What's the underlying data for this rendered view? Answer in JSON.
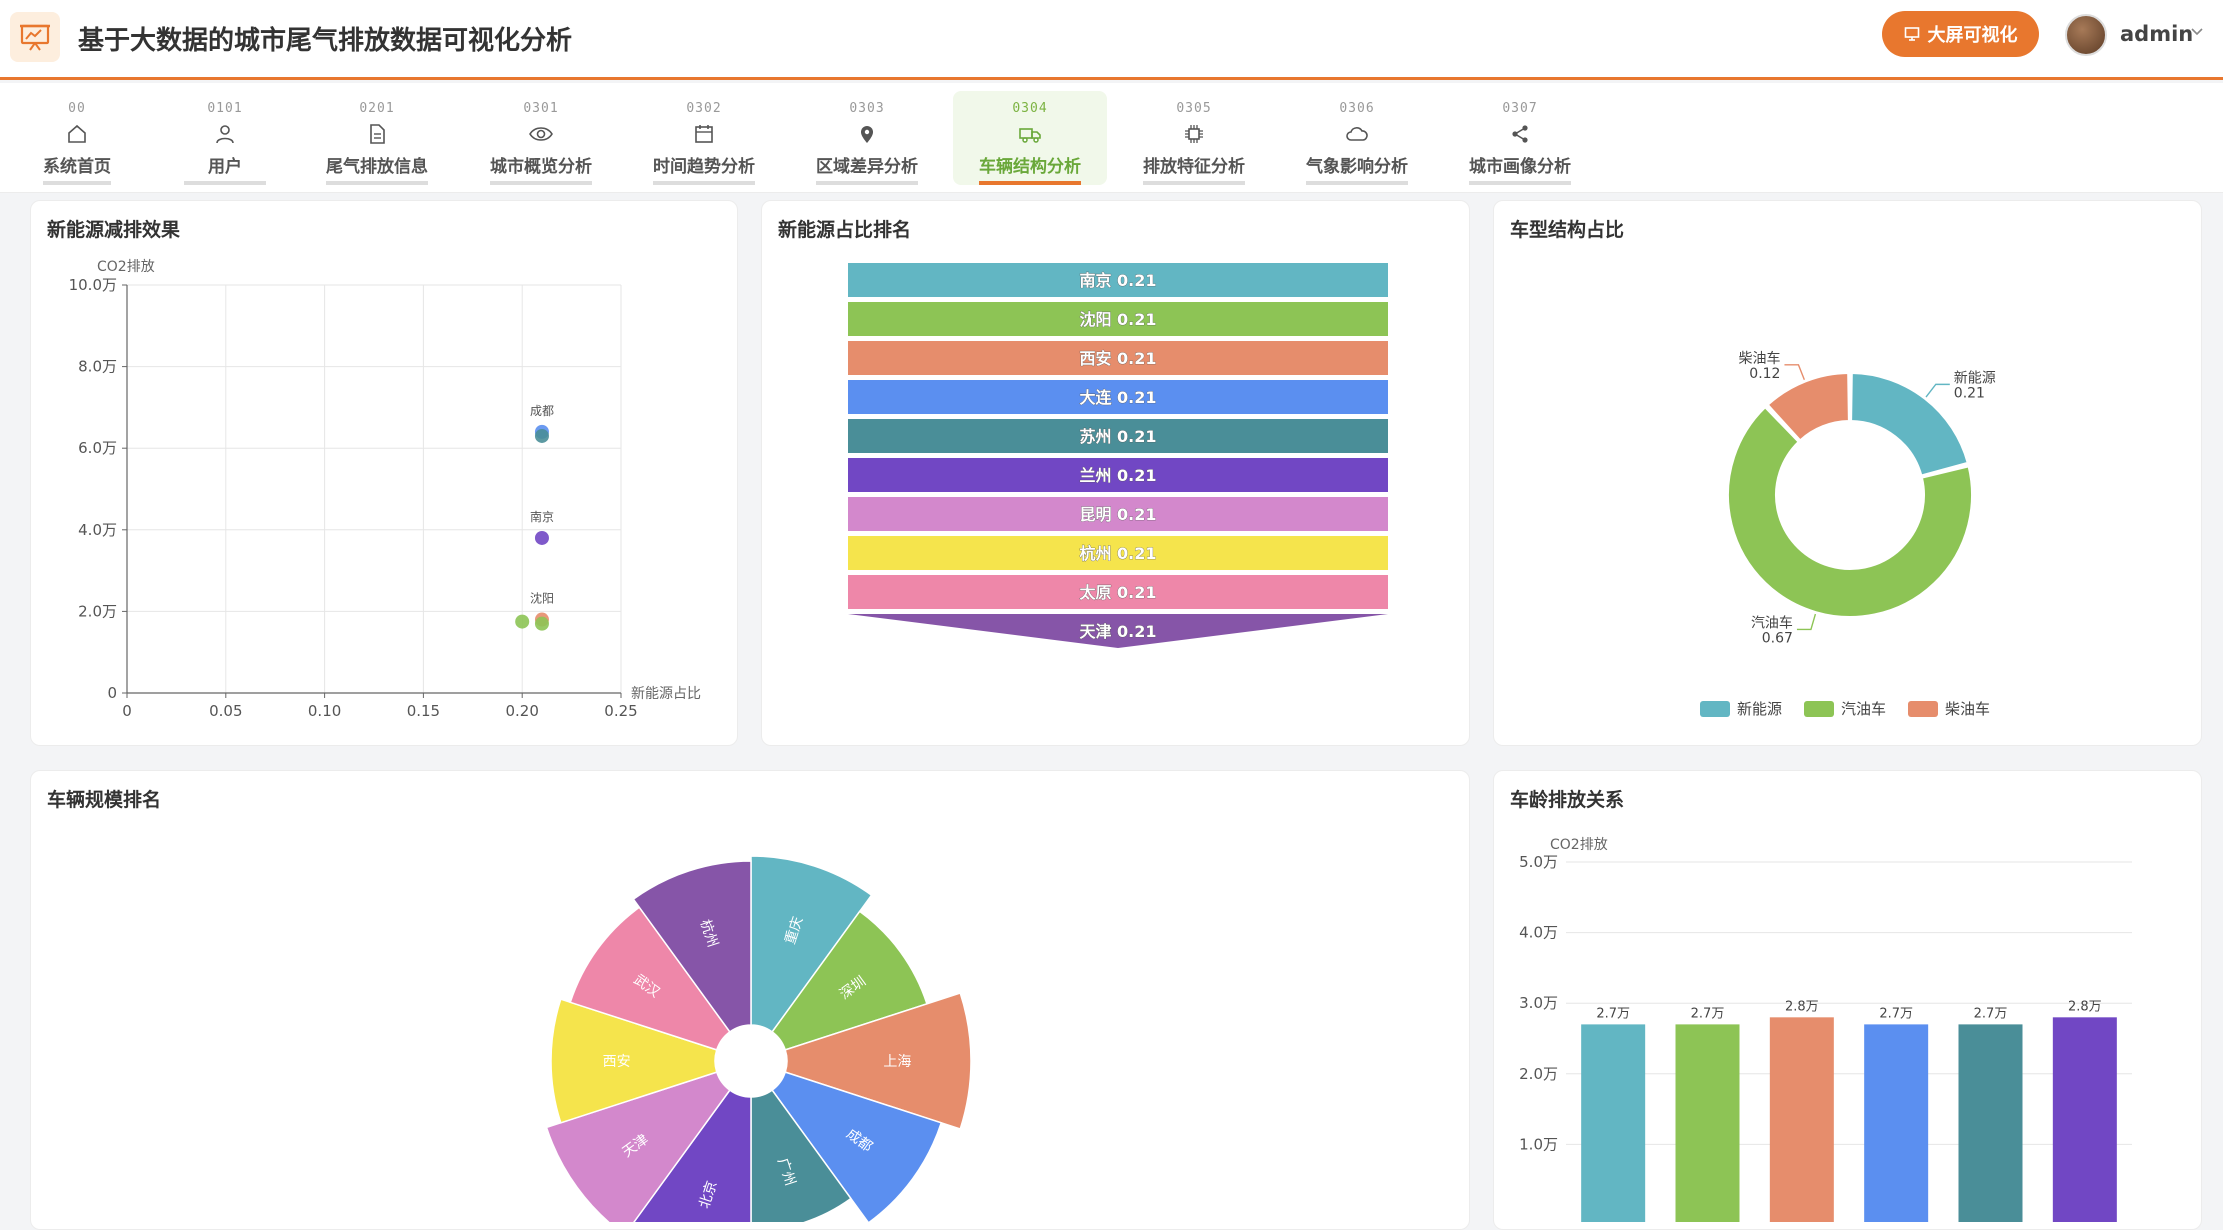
{
  "header": {
    "title": "基于大数据的城市尾气排放数据可视化分析",
    "bigscreen_label": "大屏可视化",
    "username": "admin"
  },
  "nav": [
    {
      "code": "00",
      "label": "系统首页",
      "icon": "home-icon"
    },
    {
      "code": "0101",
      "label": "用户",
      "icon": "user-icon"
    },
    {
      "code": "0201",
      "label": "尾气排放信息",
      "icon": "document-icon"
    },
    {
      "code": "0301",
      "label": "城市概览分析",
      "icon": "eye-icon"
    },
    {
      "code": "0302",
      "label": "时间趋势分析",
      "icon": "calendar-icon"
    },
    {
      "code": "0303",
      "label": "区域差异分析",
      "icon": "location-pin-icon"
    },
    {
      "code": "0304",
      "label": "车辆结构分析",
      "icon": "truck-icon",
      "active": true
    },
    {
      "code": "0305",
      "label": "排放特征分析",
      "icon": "chip-icon"
    },
    {
      "code": "0306",
      "label": "气象影响分析",
      "icon": "cloud-icon"
    },
    {
      "code": "0307",
      "label": "城市画像分析",
      "icon": "share-icon"
    }
  ],
  "colors": {
    "accent": "#e8772e",
    "active_green": "#6aa83a",
    "palette": [
      "#62b6c3",
      "#8dc455",
      "#e68d6c",
      "#5b8ff0",
      "#4a8e98",
      "#7147c4",
      "#d388cc",
      "#f5e44c",
      "#ee87a9",
      "#8655a8"
    ]
  },
  "cards": {
    "scatter_title": "新能源减排效果",
    "funnel_title": "新能源占比排名",
    "donut_title": "车型结构占比",
    "rose_title": "车辆规模排名",
    "bar_title": "车龄排放关系"
  },
  "chart_data": [
    {
      "type": "scatter",
      "title": "新能源减排效果",
      "xlabel": "新能源占比",
      "ylabel": "CO2排放",
      "xlim": [
        0,
        0.25
      ],
      "ylim": [
        0,
        100000
      ],
      "x_ticks": [
        "0",
        "0.05",
        "0.10",
        "0.15",
        "0.20",
        "0.25"
      ],
      "y_ticks": [
        "0",
        "2.0万",
        "4.0万",
        "6.0万",
        "8.0万",
        "10.0万"
      ],
      "grid": true,
      "points": [
        {
          "x": 0.21,
          "y": 64000,
          "label": "成都",
          "color": "#5b8ff0"
        },
        {
          "x": 0.21,
          "y": 63000,
          "label": "",
          "color": "#4a8e98"
        },
        {
          "x": 0.21,
          "y": 38000,
          "label": "南京",
          "color": "#7147c4"
        },
        {
          "x": 0.21,
          "y": 18000,
          "label": "沈阳",
          "color": "#e68d6c"
        },
        {
          "x": 0.2,
          "y": 17500,
          "label": "",
          "color": "#8dc455"
        },
        {
          "x": 0.21,
          "y": 17000,
          "label": "",
          "color": "#8dc455"
        }
      ]
    },
    {
      "type": "funnel",
      "title": "新能源占比排名",
      "items": [
        {
          "name": "南京",
          "value": 0.21
        },
        {
          "name": "沈阳",
          "value": 0.21
        },
        {
          "name": "西安",
          "value": 0.21
        },
        {
          "name": "大连",
          "value": 0.21
        },
        {
          "name": "苏州",
          "value": 0.21
        },
        {
          "name": "兰州",
          "value": 0.21
        },
        {
          "name": "昆明",
          "value": 0.21
        },
        {
          "name": "杭州",
          "value": 0.21
        },
        {
          "name": "太原",
          "value": 0.21
        },
        {
          "name": "天津",
          "value": 0.21
        }
      ]
    },
    {
      "type": "pie",
      "title": "车型结构占比",
      "slices": [
        {
          "name": "新能源",
          "value": 0.21,
          "color": "#62b6c3"
        },
        {
          "name": "汽油车",
          "value": 0.67,
          "color": "#8dc455"
        },
        {
          "name": "柴油车",
          "value": 0.12,
          "color": "#e68d6c"
        }
      ],
      "legend": "bottom"
    },
    {
      "type": "pie",
      "title": "车辆规模排名",
      "rose": true,
      "slices": [
        {
          "name": "重庆",
          "value": 1,
          "color": "#62b6c3"
        },
        {
          "name": "深圳",
          "value": 1,
          "color": "#8dc455"
        },
        {
          "name": "上海",
          "value": 1,
          "color": "#e68d6c"
        },
        {
          "name": "成都",
          "value": 1,
          "color": "#5b8ff0"
        },
        {
          "name": "广州",
          "value": 1,
          "color": "#4a8e98"
        },
        {
          "name": "北京",
          "value": 1,
          "color": "#7147c4"
        },
        {
          "name": "天津",
          "value": 1,
          "color": "#d388cc"
        },
        {
          "name": "西安",
          "value": 1,
          "color": "#f5e44c"
        },
        {
          "name": "武汉",
          "value": 1,
          "color": "#ee87a9"
        },
        {
          "name": "杭州",
          "value": 1,
          "color": "#8655a8"
        }
      ]
    },
    {
      "type": "bar",
      "title": "车龄排放关系",
      "ylabel": "CO2排放",
      "ylim": [
        0,
        50000
      ],
      "y_ticks": [
        "1.0万",
        "2.0万",
        "3.0万",
        "4.0万",
        "5.0万"
      ],
      "values": [
        27000,
        27000,
        28000,
        27000,
        27000,
        28000
      ],
      "value_labels": [
        "2.7万",
        "2.7万",
        "2.8万",
        "2.7万",
        "2.7万",
        "2.8万"
      ],
      "colors": [
        "#62b6c3",
        "#8dc455",
        "#e68d6c",
        "#5b8ff0",
        "#4a8e98",
        "#7147c4"
      ]
    }
  ]
}
